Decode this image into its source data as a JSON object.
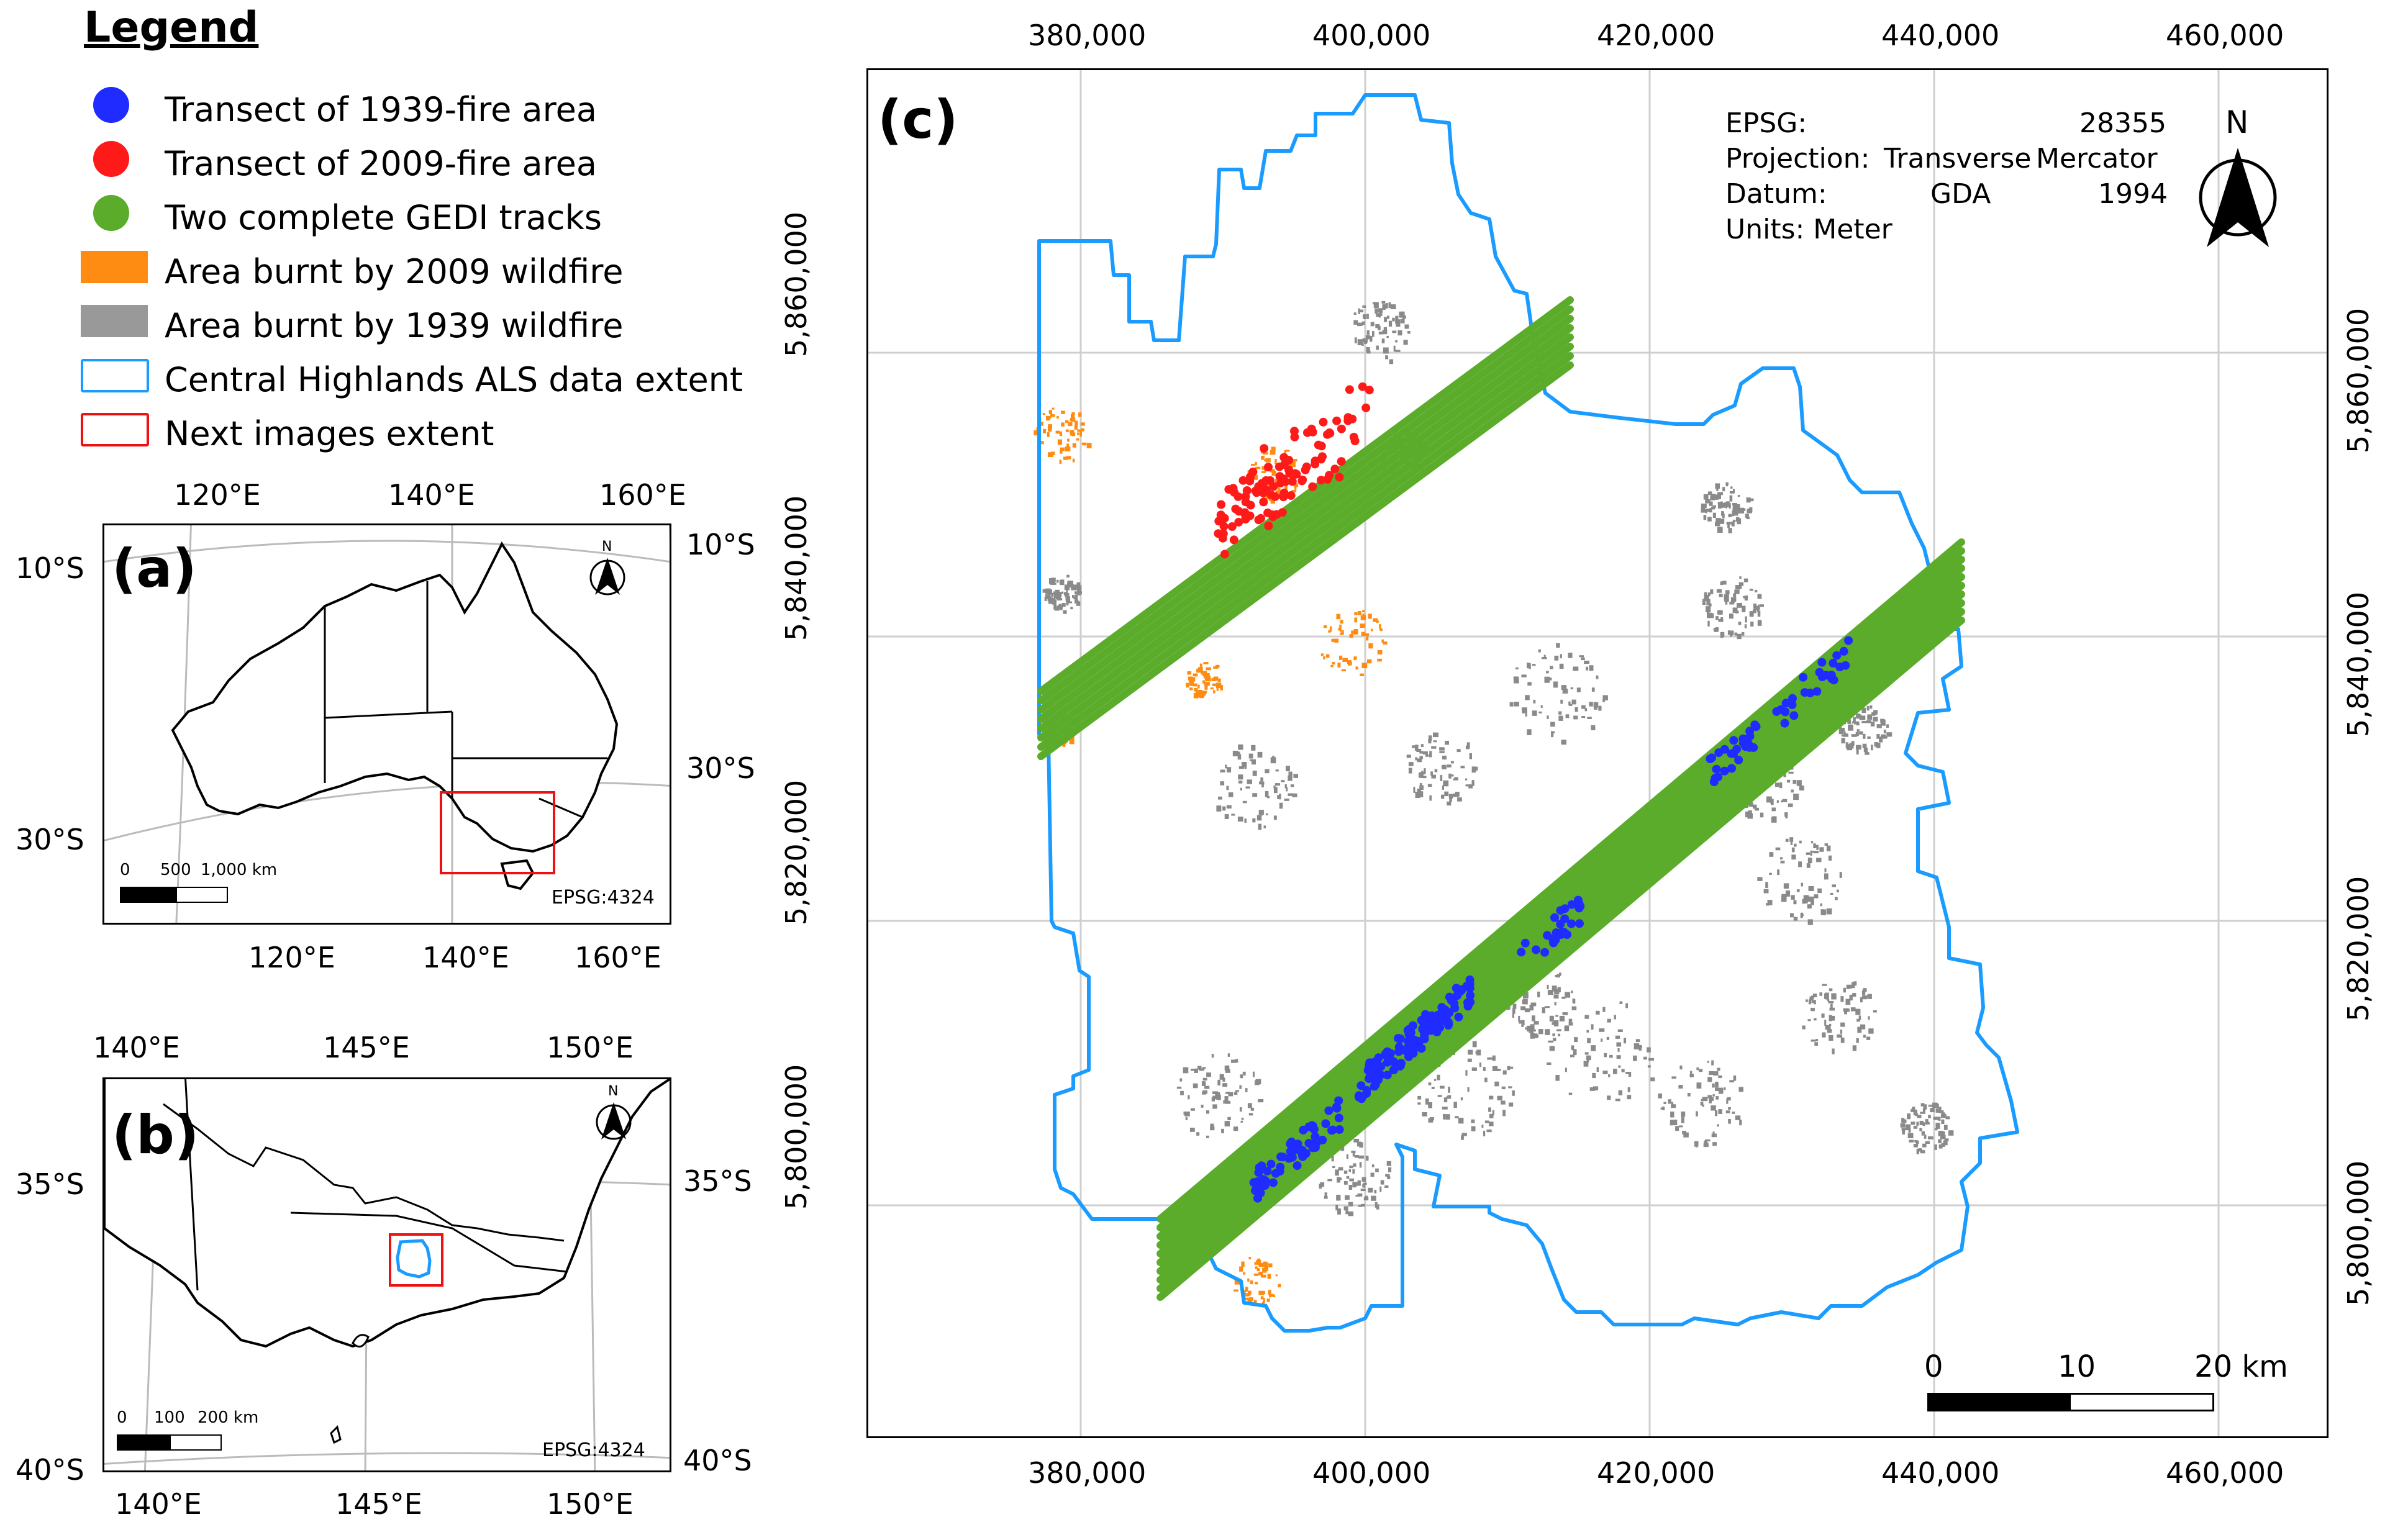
{
  "legend": {
    "title": "Legend",
    "items": [
      {
        "label": "Transect of 1939-fire area",
        "color": "#1f2bff",
        "symbol": "circle"
      },
      {
        "label": "Transect of 2009-fire area",
        "color": "#ff1a1a",
        "symbol": "circle"
      },
      {
        "label": "Two complete GEDI tracks",
        "color": "#5aac2a",
        "symbol": "circle"
      },
      {
        "label": "Area burnt by 2009 wildfire",
        "color": "#ff8c12",
        "symbol": "fill"
      },
      {
        "label": "Area burnt by 1939 wildfire",
        "color": "#999999",
        "symbol": "fill"
      },
      {
        "label": "Central Highlands ALS data extent",
        "color": "#1a9bff",
        "symbol": "outline"
      },
      {
        "label": "Next images extent",
        "color": "#ee1111",
        "symbol": "outline"
      }
    ]
  },
  "map_a": {
    "panel_label": "(a)",
    "top_ticks": [
      "120°E",
      "140°E",
      "160°E"
    ],
    "bottom_ticks": [
      "120°E",
      "140°E",
      "160°E"
    ],
    "left_ticks": [
      "10°S",
      "30°S"
    ],
    "right_ticks": [
      "10°S",
      "30°S"
    ],
    "scale_labels": [
      "0",
      "500",
      "1,000 km"
    ],
    "epsg": "EPSG:4324",
    "north": "N"
  },
  "map_b": {
    "panel_label": "(b)",
    "top_ticks": [
      "140°E",
      "145°E",
      "150°E"
    ],
    "bottom_ticks": [
      "140°E",
      "145°E",
      "150°E"
    ],
    "left_ticks": [
      "35°S",
      "40°S"
    ],
    "right_ticks": [
      "35°S",
      "40°S"
    ],
    "scale_labels": [
      "0",
      "100",
      "200 km"
    ],
    "epsg": "EPSG:4324",
    "north": "N"
  },
  "map_c": {
    "panel_label": "(c)",
    "x_ticks": [
      "380,000",
      "400,000",
      "420,000",
      "440,000",
      "460,000"
    ],
    "y_ticks": [
      "5,860,000",
      "5,840,000",
      "5,820,000",
      "5,800,000"
    ],
    "info": {
      "epsg_label": "EPSG:",
      "epsg_value": "28355",
      "projection_label": "Projection:",
      "projection_value1": "Transverse",
      "projection_value2": "Mercator",
      "datum_label": "Datum:",
      "datum_value1": "GDA",
      "datum_value2": "1994",
      "units": "Units: Meter"
    },
    "scale_labels": [
      "0",
      "10",
      "20 km"
    ],
    "north": "N"
  }
}
